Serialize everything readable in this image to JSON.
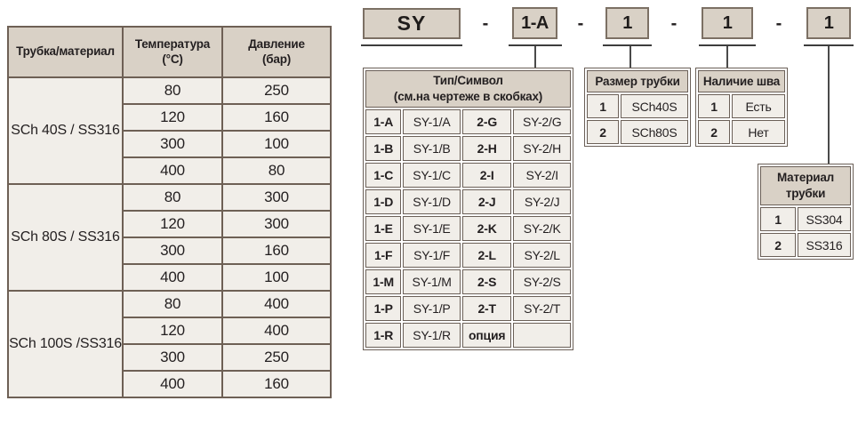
{
  "pressure_table": {
    "col1_header": "Трубка/материал",
    "col2_header_line1": "Температура",
    "col2_header_line2": "(°С)",
    "col3_header_line1": "Давление",
    "col3_header_line2": "(бар)",
    "groups": [
      {
        "material": "SCh 40S / SS316",
        "rows": [
          [
            "80",
            "250"
          ],
          [
            "120",
            "160"
          ],
          [
            "300",
            "100"
          ],
          [
            "400",
            "80"
          ]
        ]
      },
      {
        "material": "SCh 80S / SS316",
        "rows": [
          [
            "80",
            "300"
          ],
          [
            "120",
            "300"
          ],
          [
            "300",
            "160"
          ],
          [
            "400",
            "100"
          ]
        ]
      },
      {
        "material": "SCh 100S /SS316",
        "rows": [
          [
            "80",
            "400"
          ],
          [
            "120",
            "400"
          ],
          [
            "300",
            "250"
          ],
          [
            "400",
            "160"
          ]
        ]
      }
    ]
  },
  "order_code": {
    "separator": "-",
    "segments": [
      "SY",
      "1-A",
      "1",
      "1",
      "1"
    ]
  },
  "type_symbol_table": {
    "title_line1": "Тип/Символ",
    "title_line2": "(см.на чертеже в скобках)",
    "rows": [
      [
        "1-A",
        "SY-1/A",
        "2-G",
        "SY-2/G"
      ],
      [
        "1-B",
        "SY-1/B",
        "2-H",
        "SY-2/H"
      ],
      [
        "1-C",
        "SY-1/C",
        "2-I",
        "SY-2/I"
      ],
      [
        "1-D",
        "SY-1/D",
        "2-J",
        "SY-2/J"
      ],
      [
        "1-E",
        "SY-1/E",
        "2-K",
        "SY-2/K"
      ],
      [
        "1-F",
        "SY-1/F",
        "2-L",
        "SY-2/L"
      ],
      [
        "1-M",
        "SY-1/M",
        "2-S",
        "SY-2/S"
      ],
      [
        "1-P",
        "SY-1/P",
        "2-T",
        "SY-2/T"
      ],
      [
        "1-R",
        "SY-1/R",
        "опция",
        ""
      ]
    ]
  },
  "tube_size_table": {
    "title": "Размер трубки",
    "rows": [
      [
        "1",
        "SCh40S"
      ],
      [
        "2",
        "SCh80S"
      ]
    ]
  },
  "seam_table": {
    "title": "Наличие шва",
    "rows": [
      [
        "1",
        "Есть"
      ],
      [
        "2",
        "Нет"
      ]
    ]
  },
  "tube_material_table": {
    "title_line1": "Материал",
    "title_line2": "трубки",
    "rows": [
      [
        "1",
        "SS304"
      ],
      [
        "2",
        "SS316"
      ]
    ]
  },
  "colors": {
    "header_fill": "#d9d1c6",
    "cell_fill": "#f1eee9",
    "border": "#6e6055",
    "line": "#4a4a4a",
    "text": "#231f20"
  }
}
